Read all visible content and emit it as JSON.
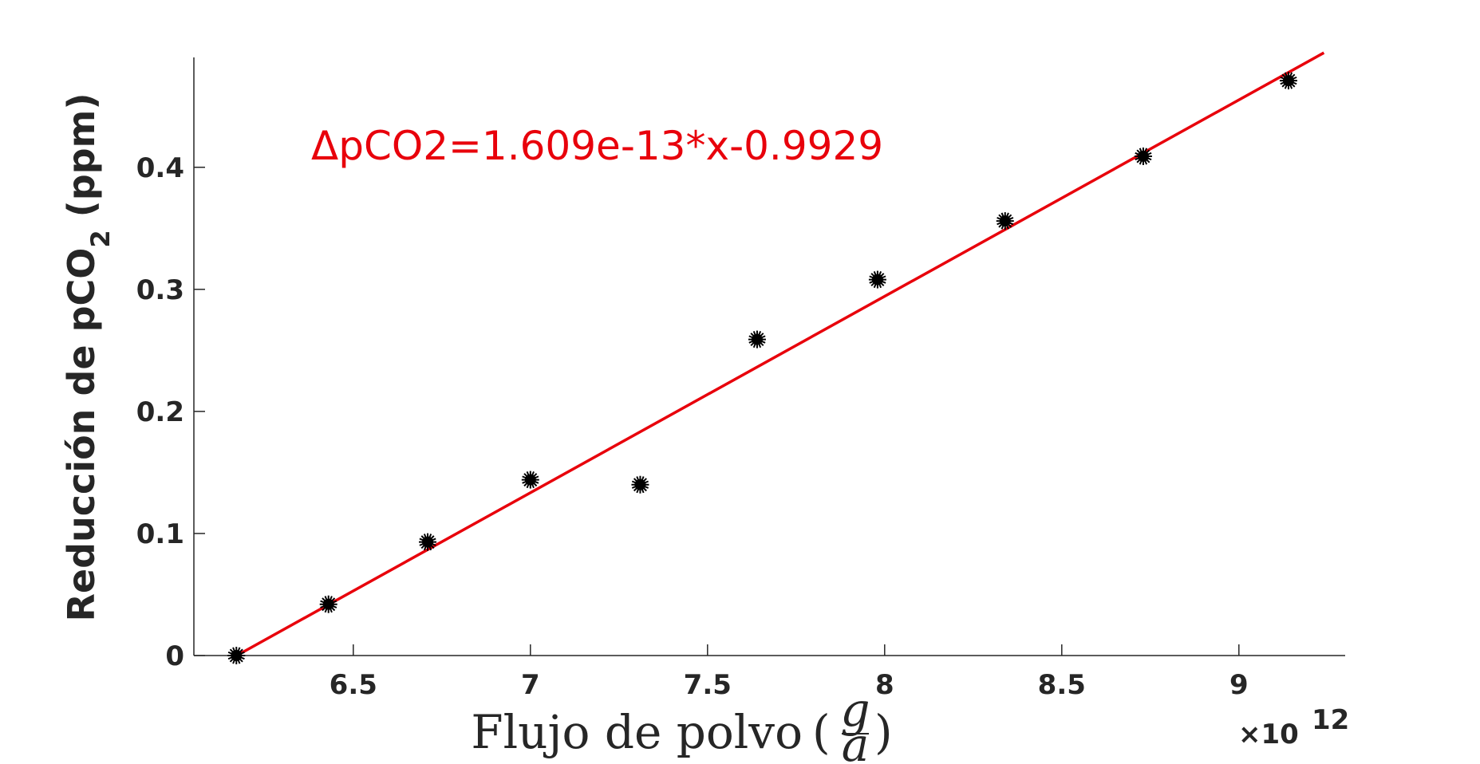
{
  "chart_data": {
    "type": "scatter",
    "xlabel_main": "Flujo de polvo",
    "xlabel_frac_num": "g",
    "xlabel_frac_den": "a",
    "ylabel_main": "Reducción de pCO",
    "ylabel_sub": "2",
    "ylabel_unit": "(ppm)",
    "x_exponent_base": "×10",
    "x_exponent_power": "12",
    "xlim": [
      6.05,
      9.3
    ],
    "ylim": [
      0,
      0.49
    ],
    "x_ticks": [
      6.5,
      7,
      7.5,
      8,
      8.5,
      9
    ],
    "x_tick_labels": [
      "6.5",
      "7",
      "7.5",
      "8",
      "8.5",
      "9"
    ],
    "y_ticks": [
      0,
      0.1,
      0.2,
      0.3,
      0.4
    ],
    "y_tick_labels": [
      "0",
      "0.1",
      "0.2",
      "0.3",
      "0.4"
    ],
    "grid": false,
    "series": [
      {
        "x": [
          6.17,
          6.43,
          6.71,
          7.0,
          7.31,
          7.64,
          7.98,
          8.34,
          8.73,
          9.14
        ],
        "y": [
          0.0,
          0.042,
          0.093,
          0.144,
          0.14,
          0.259,
          0.308,
          0.356,
          0.409,
          0.471
        ],
        "color": "#000000",
        "marker": "asterisk"
      }
    ],
    "fit": {
      "slope_scaled": 0.1609,
      "intercept": -0.9929,
      "x_range": [
        6.17,
        9.24
      ],
      "color": "#e8000b",
      "equation": "ΔpCO2=1.609e-13*x-0.9929"
    }
  }
}
